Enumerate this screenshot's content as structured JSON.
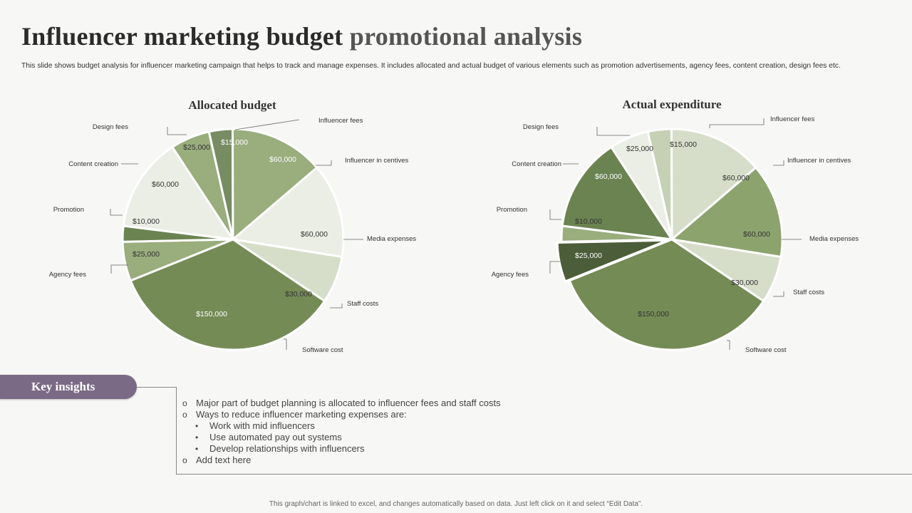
{
  "title_part1": "Influencer marketing budget",
  "title_part2": "promotional analysis",
  "subtitle": "This slide shows budget analysis for influencer marketing campaign that helps to track and manage expenses. It includes allocated and actual budget of various elements such as promotion advertisements, agency fees, content creation, design fees etc.",
  "chart_data": [
    {
      "type": "pie",
      "title": "Allocated budget",
      "slices": [
        {
          "label": "Influencer fees",
          "value": 15000,
          "display": "$15,000",
          "color": "#788c64",
          "text_color": "#ffffff"
        },
        {
          "label": "Influencer in centives",
          "value": 60000,
          "display": "$60,000",
          "color": "#99ad7d",
          "text_color": "#ffffff"
        },
        {
          "label": "Media expenses",
          "value": 60000,
          "display": "$60,000",
          "color": "#ebeee4",
          "text_color": "#333333"
        },
        {
          "label": "Staff costs",
          "value": 30000,
          "display": "$30,000",
          "color": "#d6dec9",
          "text_color": "#333333"
        },
        {
          "label": "Software cost",
          "value": 150000,
          "display": "$150,000",
          "color": "#758b56",
          "text_color": "#ffffff"
        },
        {
          "label": "Agency fees",
          "value": 25000,
          "display": "$25,000",
          "color": "#99ad7d",
          "text_color": "#333333"
        },
        {
          "label": "Promotion",
          "value": 10000,
          "display": "$10,000",
          "color": "#6b8351",
          "text_color": "#333333"
        },
        {
          "label": "Content creation",
          "value": 60000,
          "display": "$60,000",
          "color": "#ebeee4",
          "text_color": "#333333"
        },
        {
          "label": "Design fees",
          "value": 25000,
          "display": "$25,000",
          "color": "#99ad7d",
          "text_color": "#333333"
        }
      ]
    },
    {
      "type": "pie",
      "title": "Actual expenditure",
      "slices": [
        {
          "label": "Influencer fees",
          "value": 15000,
          "display": "$15,000",
          "color": "#c6d0b5",
          "text_color": "#333333"
        },
        {
          "label": "Influencer in centives",
          "value": 60000,
          "display": "$60,000",
          "color": "#d6dec9",
          "text_color": "#333333"
        },
        {
          "label": "Media expenses",
          "value": 60000,
          "display": "$60,000",
          "color": "#8ca36e",
          "text_color": "#333333"
        },
        {
          "label": "Staff costs",
          "value": 30000,
          "display": "$30,000",
          "color": "#d6dec9",
          "text_color": "#333333"
        },
        {
          "label": "Software cost",
          "value": 150000,
          "display": "$150,000",
          "color": "#758b56",
          "text_color": "#333333"
        },
        {
          "label": "Agency fees",
          "value": 25000,
          "display": "$25,000",
          "color": "#4c5d39",
          "text_color": "#ffffff"
        },
        {
          "label": "Promotion",
          "value": 10000,
          "display": "$10,000",
          "color": "#99ad7d",
          "text_color": "#333333"
        },
        {
          "label": "Content creation",
          "value": 60000,
          "display": "$60,000",
          "color": "#6b8351",
          "text_color": "#ffffff"
        },
        {
          "label": "Design fees",
          "value": 25000,
          "display": "$25,000",
          "color": "#ebeee4",
          "text_color": "#333333"
        }
      ]
    }
  ],
  "key_insights": {
    "label": "Key insights",
    "items": [
      {
        "level": 1,
        "marker": "o",
        "text": "Major part of budget planning is allocated to influencer fees and staff costs"
      },
      {
        "level": 1,
        "marker": "o",
        "text": "Ways to reduce influencer marketing expenses are:"
      },
      {
        "level": 2,
        "marker": "•",
        "text": "Work with mid influencers"
      },
      {
        "level": 2,
        "marker": "•",
        "text": "Use automated pay out systems"
      },
      {
        "level": 2,
        "marker": "•",
        "text": "Develop relationships with influencers"
      },
      {
        "level": 1,
        "marker": "o",
        "text": "Add text here"
      }
    ]
  },
  "footer": "This graph/chart is linked to excel, and changes automatically based on data. Just left click on it and select “Edit Data”."
}
